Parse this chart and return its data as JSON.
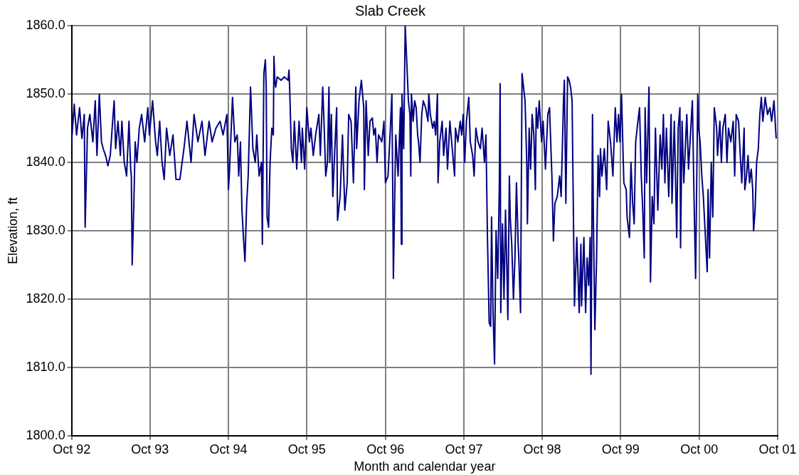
{
  "chart_data": {
    "type": "line",
    "title": "Slab Creek",
    "xlabel": "Month and calendar year",
    "ylabel": "Elevation, ft",
    "x": [
      "1992-10-01",
      "1992-10-13",
      "1992-10-24",
      "1992-11-07",
      "1992-11-18",
      "1992-11-29",
      "1992-12-03",
      "1992-12-14",
      "1992-12-25",
      "1993-01-08",
      "1993-01-19",
      "1993-01-27",
      "1993-02-07",
      "1993-02-17",
      "1993-02-25",
      "1993-03-08",
      "1993-03-19",
      "1993-03-30",
      "1993-04-10",
      "1993-04-17",
      "1993-04-24",
      "1993-05-05",
      "1993-05-16",
      "1993-05-23",
      "1993-06-03",
      "1993-06-14",
      "1993-06-25",
      "1993-07-03",
      "1993-07-06",
      "1993-07-10",
      "1993-07-17",
      "1993-07-24",
      "1993-08-01",
      "1993-08-12",
      "1993-08-23",
      "1993-09-06",
      "1993-09-21",
      "1993-09-28",
      "1993-10-13",
      "1993-10-27",
      "1993-11-04",
      "1993-11-15",
      "1993-11-26",
      "1993-12-06",
      "1993-12-17",
      "1994-01-01",
      "1994-01-16",
      "1994-01-30",
      "1994-02-17",
      "1994-03-08",
      "1994-03-22",
      "1994-04-10",
      "1994-04-24",
      "1994-05-12",
      "1994-05-31",
      "1994-06-14",
      "1994-07-03",
      "1994-07-17",
      "1994-08-04",
      "1994-08-23",
      "1994-09-06",
      "1994-09-24",
      "1994-10-01",
      "1994-10-05",
      "1994-10-20",
      "1994-10-31",
      "1994-11-11",
      "1994-11-18",
      "1994-11-26",
      "1994-12-03",
      "1994-12-10",
      "1994-12-17",
      "1994-12-25",
      "1995-01-01",
      "1995-01-12",
      "1995-01-23",
      "1995-02-03",
      "1995-02-10",
      "1995-02-21",
      "1995-03-04",
      "1995-03-08",
      "1995-03-15",
      "1995-03-22",
      "1995-03-26",
      "1995-03-30",
      "1995-04-06",
      "1995-04-13",
      "1995-04-21",
      "1995-04-28",
      "1995-05-01",
      "1995-05-05",
      "1995-05-09",
      "1995-05-16",
      "1995-06-03",
      "1995-06-18",
      "1995-07-06",
      "1995-07-10",
      "1995-07-13",
      "1995-07-21",
      "1995-07-28",
      "1995-08-04",
      "1995-08-15",
      "1995-08-26",
      "1995-09-06",
      "1995-09-10",
      "1995-09-21",
      "1995-10-01",
      "1995-10-13",
      "1995-10-20",
      "1995-10-31",
      "1995-11-11",
      "1995-11-26",
      "1995-12-03",
      "1995-12-14",
      "1995-12-21",
      "1995-12-28",
      "1996-01-05",
      "1996-01-12",
      "1996-01-16",
      "1996-01-23",
      "1996-01-30",
      "1996-02-07",
      "1996-02-17",
      "1996-02-21",
      "1996-03-04",
      "1996-03-15",
      "1996-03-26",
      "1996-04-06",
      "1996-04-13",
      "1996-04-24",
      "1996-05-05",
      "1996-05-16",
      "1996-05-20",
      "1996-05-31",
      "1996-06-11",
      "1996-06-22",
      "1996-06-25",
      "1996-07-03",
      "1996-07-13",
      "1996-07-21",
      "1996-08-01",
      "1996-08-08",
      "1996-08-15",
      "1996-08-23",
      "1996-08-30",
      "1996-09-14",
      "1996-09-21",
      "1996-09-24",
      "1996-10-01",
      "1996-10-13",
      "1996-10-24",
      "1996-10-31",
      "1996-11-04",
      "1996-11-07",
      "1996-11-18",
      "1996-11-29",
      "1996-12-10",
      "1996-12-14",
      "1996-12-17",
      "1996-12-25",
      "1997-01-01",
      "1997-01-08",
      "1997-01-16",
      "1997-01-23",
      "1997-01-27",
      "1997-01-30",
      "1997-02-07",
      "1997-02-14",
      "1997-02-21",
      "1997-02-28",
      "1997-03-04",
      "1997-03-11",
      "1997-03-19",
      "1997-03-26",
      "1997-04-06",
      "1997-04-17",
      "1997-04-21",
      "1997-04-28",
      "1997-05-09",
      "1997-05-16",
      "1997-05-23",
      "1997-05-31",
      "1997-06-03",
      "1997-06-11",
      "1997-06-22",
      "1997-06-29",
      "1997-07-10",
      "1997-07-17",
      "1997-07-28",
      "1997-08-08",
      "1997-08-19",
      "1997-08-23",
      "1997-09-03",
      "1997-09-14",
      "1997-09-21",
      "1997-09-28",
      "1997-10-05",
      "1997-10-13",
      "1997-10-24",
      "1997-10-31",
      "1997-11-11",
      "1997-11-18",
      "1997-11-26",
      "1997-12-06",
      "1997-12-17",
      "1997-12-25",
      "1998-01-05",
      "1998-01-12",
      "1998-01-19",
      "1998-01-27",
      "1998-02-03",
      "1998-02-07",
      "1998-02-14",
      "1998-02-21",
      "1998-02-28",
      "1998-03-08",
      "1998-03-15",
      "1998-03-19",
      "1998-03-22",
      "1998-03-30",
      "1998-04-06",
      "1998-04-13",
      "1998-04-21",
      "1998-04-24",
      "1998-05-01",
      "1998-05-05",
      "1998-05-12",
      "1998-05-20",
      "1998-05-27",
      "1998-06-03",
      "1998-06-11",
      "1998-06-14",
      "1998-06-22",
      "1998-06-29",
      "1998-07-06",
      "1998-07-13",
      "1998-07-21",
      "1998-07-24",
      "1998-08-01",
      "1998-08-08",
      "1998-08-15",
      "1998-08-23",
      "1998-08-30",
      "1998-09-03",
      "1998-09-10",
      "1998-09-17",
      "1998-09-28",
      "1998-10-05",
      "1998-10-13",
      "1998-10-16",
      "1998-10-27",
      "1998-11-04",
      "1998-11-15",
      "1998-11-22",
      "1998-11-29",
      "1998-12-10",
      "1998-12-21",
      "1998-12-28",
      "1999-01-08",
      "1999-01-12",
      "1999-01-19",
      "1999-01-27",
      "1999-02-03",
      "1999-02-10",
      "1999-02-17",
      "1999-02-28",
      "1999-03-11",
      "1999-03-22",
      "1999-03-30",
      "1999-04-02",
      "1999-04-13",
      "1999-04-21",
      "1999-04-28",
      "1999-05-05",
      "1999-05-12",
      "1999-05-16",
      "1999-05-23",
      "1999-05-27",
      "1999-06-03",
      "1999-06-11",
      "1999-06-18",
      "1999-06-25",
      "1999-06-29",
      "1999-07-06",
      "1999-07-17",
      "1999-07-28",
      "1999-08-04",
      "1999-08-15",
      "1999-08-26",
      "1999-09-06",
      "1999-09-14",
      "1999-09-21",
      "1999-09-28",
      "1999-10-05",
      "1999-10-16",
      "1999-10-27",
      "1999-10-31",
      "1999-11-11",
      "1999-11-18",
      "1999-11-26",
      "1999-12-03",
      "1999-12-10",
      "1999-12-17",
      "1999-12-28",
      "2000-01-05",
      "2000-01-12",
      "2000-01-19",
      "2000-01-23",
      "2000-01-30",
      "2000-02-10",
      "2000-02-17",
      "2000-02-25",
      "2000-03-04",
      "2000-03-11",
      "2000-03-22",
      "2000-04-02",
      "2000-04-10",
      "2000-04-17",
      "2000-04-24",
      "2000-05-01",
      "2000-05-12",
      "2000-05-23",
      "2000-05-27",
      "2000-06-07",
      "2000-06-18",
      "2000-06-25",
      "2000-07-03",
      "2000-07-06",
      "2000-07-13",
      "2000-07-21",
      "2000-08-04",
      "2000-08-12",
      "2000-08-30",
      "2000-09-06",
      "2000-09-14",
      "2000-09-24",
      "2000-09-28",
      "2000-10-05",
      "2000-10-13",
      "2000-10-20",
      "2000-11-07",
      "2000-11-11",
      "2000-11-18",
      "2000-11-26",
      "2000-12-03",
      "2000-12-10",
      "2000-12-21",
      "2000-12-25",
      "2001-01-05",
      "2001-01-12",
      "2001-01-19",
      "2001-01-30",
      "2001-02-07",
      "2001-02-14",
      "2001-02-25",
      "2001-03-08",
      "2001-03-15",
      "2001-03-22",
      "2001-04-02",
      "2001-04-10",
      "2001-04-17",
      "2001-04-28",
      "2001-05-01",
      "2001-05-09",
      "2001-05-16",
      "2001-05-23",
      "2001-05-31",
      "2001-06-07",
      "2001-06-11",
      "2001-06-18",
      "2001-06-25",
      "2001-07-03",
      "2001-07-10",
      "2001-07-17",
      "2001-07-24",
      "2001-08-04",
      "2001-08-15",
      "2001-08-26",
      "2001-09-03",
      "2001-09-14",
      "2001-09-24"
    ],
    "series": [
      {
        "color": "#000080",
        "values": [
          1843,
          1848.5,
          1844,
          1848,
          1843.5,
          1847,
          1830.5,
          1845,
          1847,
          1843,
          1849,
          1841,
          1850,
          1843,
          1842,
          1841,
          1839.5,
          1841,
          1846,
          1849,
          1842,
          1846,
          1841,
          1846,
          1840,
          1838,
          1846,
          1839,
          1838,
          1825,
          1833,
          1843,
          1840,
          1845,
          1847,
          1843,
          1848,
          1844,
          1849,
          1843,
          1841,
          1846,
          1840,
          1837.5,
          1845,
          1841,
          1844,
          1837.5,
          1837.5,
          1842,
          1846,
          1840,
          1847,
          1843,
          1846,
          1841,
          1846,
          1843,
          1845,
          1846,
          1844,
          1847,
          1836,
          1838,
          1849.5,
          1843,
          1844,
          1838,
          1843,
          1833,
          1829,
          1825.5,
          1834,
          1838,
          1851,
          1842,
          1840,
          1844,
          1838,
          1840,
          1828,
          1853,
          1855,
          1851,
          1832,
          1830.5,
          1840,
          1845,
          1844,
          1855.5,
          1852,
          1851,
          1852.5,
          1852,
          1852.5,
          1852,
          1853.5,
          1851,
          1842,
          1840,
          1846,
          1839,
          1846,
          1840,
          1845,
          1839,
          1848,
          1843,
          1845,
          1841,
          1844,
          1847,
          1841,
          1851,
          1845,
          1838,
          1840,
          1851,
          1840,
          1847,
          1835,
          1841,
          1848,
          1831.5,
          1835,
          1844,
          1833,
          1837,
          1847,
          1846,
          1837,
          1851,
          1842,
          1849,
          1852,
          1848,
          1836,
          1849,
          1841,
          1846,
          1846.5,
          1844,
          1845,
          1840,
          1844,
          1843,
          1845,
          1846,
          1837,
          1838,
          1845,
          1850,
          1836,
          1823,
          1844,
          1838,
          1848,
          1828,
          1850,
          1842,
          1860,
          1855,
          1849,
          1847,
          1838,
          1850,
          1846,
          1849,
          1848,
          1844,
          1843,
          1840,
          1847,
          1849,
          1848,
          1846,
          1850,
          1847,
          1845,
          1846,
          1844,
          1850,
          1837,
          1843,
          1846,
          1841,
          1845,
          1839,
          1846,
          1842,
          1838,
          1845,
          1843,
          1846,
          1844,
          1847,
          1840,
          1846,
          1849.5,
          1843,
          1841,
          1838,
          1845,
          1843,
          1842,
          1845,
          1840,
          1844,
          1829,
          1816.5,
          1816,
          1832,
          1818,
          1810.5,
          1830,
          1823,
          1836,
          1851.5,
          1818,
          1831,
          1820,
          1833,
          1822,
          1817,
          1838,
          1832,
          1828,
          1820,
          1826,
          1837,
          1828,
          1826,
          1818,
          1853,
          1851,
          1849,
          1840,
          1831,
          1845,
          1839,
          1847,
          1844,
          1836,
          1848,
          1845,
          1849,
          1843,
          1846,
          1841,
          1839,
          1847,
          1848,
          1838,
          1828.5,
          1834,
          1835,
          1838,
          1835,
          1849,
          1852,
          1834,
          1852.5,
          1852,
          1851,
          1849,
          1819,
          1829,
          1818,
          1828,
          1819,
          1829,
          1818,
          1826,
          1822,
          1829,
          1809,
          1847,
          1832,
          1815.5,
          1826,
          1841,
          1835,
          1842,
          1838,
          1842,
          1836,
          1846,
          1843,
          1838,
          1848,
          1843,
          1847,
          1843,
          1850,
          1837,
          1836,
          1832,
          1829,
          1840,
          1834,
          1831,
          1843,
          1845,
          1848,
          1838,
          1833,
          1826,
          1848,
          1837,
          1851,
          1822.5,
          1835,
          1831,
          1845,
          1833,
          1844,
          1839,
          1847,
          1837,
          1845,
          1835,
          1847,
          1834,
          1846,
          1829,
          1845,
          1848,
          1827.5,
          1846,
          1837,
          1847,
          1839,
          1849,
          1836,
          1823,
          1850,
          1845,
          1843,
          1838,
          1835,
          1824,
          1836,
          1826,
          1840,
          1832,
          1848,
          1845,
          1841,
          1846,
          1840,
          1845,
          1847,
          1840,
          1845,
          1843,
          1846,
          1838,
          1847,
          1846,
          1841,
          1837,
          1845,
          1836,
          1838,
          1841,
          1837,
          1839,
          1836,
          1830,
          1833,
          1840,
          1842,
          1847,
          1849.5,
          1846,
          1849.5,
          1847,
          1848,
          1846,
          1849,
          1843.5
        ]
      }
    ],
    "xlim": [
      "1992-10-01",
      "2001-10-01"
    ],
    "xticks": [
      {
        "value": "1992-10-01",
        "label": "Oct 92"
      },
      {
        "value": "1993-10-01",
        "label": "Oct 93"
      },
      {
        "value": "1994-10-01",
        "label": "Oct 94"
      },
      {
        "value": "1995-10-01",
        "label": "Oct 95"
      },
      {
        "value": "1996-10-01",
        "label": "Oct 96"
      },
      {
        "value": "1997-10-01",
        "label": "Oct 97"
      },
      {
        "value": "1998-10-01",
        "label": "Oct 98"
      },
      {
        "value": "1999-10-01",
        "label": "Oct 99"
      },
      {
        "value": "2000-10-01",
        "label": "Oct 00"
      },
      {
        "value": "2001-10-01",
        "label": "Oct 01"
      }
    ],
    "ylim": [
      1800,
      1860
    ],
    "yticks": [
      {
        "value": 1800,
        "label": "1800.0"
      },
      {
        "value": 1810,
        "label": "1810.0"
      },
      {
        "value": 1820,
        "label": "1820.0"
      },
      {
        "value": 1830,
        "label": "1830.0"
      },
      {
        "value": 1840,
        "label": "1840.0"
      },
      {
        "value": 1850,
        "label": "1850.0"
      },
      {
        "value": 1860,
        "label": "1860.0"
      }
    ],
    "grid": true,
    "legend": false,
    "marker": "none",
    "line_style": "solid"
  }
}
